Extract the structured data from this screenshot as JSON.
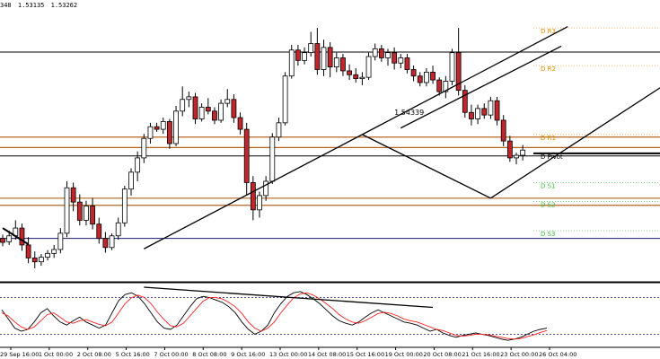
{
  "header": {
    "symbol_fragment": "348",
    "values": [
      "1.53135",
      "1.53262"
    ]
  },
  "colors": {
    "bull": "#ffffff",
    "bear": "#c0272d",
    "wick": "#000000",
    "pivot_lines": "#b5651d",
    "label_orange": "#e08a00",
    "label_green": "#3bbf3b",
    "dotted_orange": "#f4a040",
    "dotted_green": "#66cc66",
    "navy": "#1a1a7a",
    "stoch_main": "#000000",
    "stoch_signal": "#ff2020",
    "arrow": "#3333ff"
  },
  "chart_data": [
    {
      "type": "candlestick",
      "title": "",
      "price_range": [
        1.517,
        1.559
      ],
      "time_labels": [
        "29 Sep 16:00",
        "1 Oct 00:00",
        "2 Oct 08:00",
        "5 Oct 16:00",
        "7 Oct 00:00",
        "8 Oct 08:00",
        "9 Oct 16:00",
        "13 Oct 00:00",
        "14 Oct 08:00",
        "15 Oct 16:00",
        "19 Oct 00:00",
        "20 Oct 08:00",
        "21 Oct 16:00",
        "23 Oct 00:00",
        "26 Oct 04:00"
      ],
      "candles": [
        [
          1.5234,
          1.524,
          1.5222,
          1.5228
        ],
        [
          1.5229,
          1.5246,
          1.5224,
          1.5238
        ],
        [
          1.5238,
          1.5262,
          1.5232,
          1.525
        ],
        [
          1.525,
          1.5257,
          1.5215,
          1.5224
        ],
        [
          1.5224,
          1.5236,
          1.5196,
          1.5204
        ],
        [
          1.5204,
          1.5214,
          1.5188,
          1.5198
        ],
        [
          1.5198,
          1.521,
          1.5192,
          1.5205
        ],
        [
          1.5205,
          1.5216,
          1.52,
          1.5211
        ],
        [
          1.5211,
          1.5224,
          1.5204,
          1.5217
        ],
        [
          1.5217,
          1.525,
          1.5211,
          1.5242
        ],
        [
          1.5242,
          1.5322,
          1.5236,
          1.5312
        ],
        [
          1.5312,
          1.532,
          1.5276,
          1.529
        ],
        [
          1.529,
          1.5302,
          1.5254,
          1.5262
        ],
        [
          1.5262,
          1.5292,
          1.5254,
          1.5284
        ],
        [
          1.5284,
          1.5296,
          1.5248,
          1.5256
        ],
        [
          1.5256,
          1.5266,
          1.5226,
          1.5234
        ],
        [
          1.5234,
          1.5244,
          1.5212,
          1.522
        ],
        [
          1.522,
          1.5242,
          1.5216,
          1.5238
        ],
        [
          1.5238,
          1.5266,
          1.5232,
          1.5258
        ],
        [
          1.5258,
          1.5315,
          1.5252,
          1.531
        ],
        [
          1.531,
          1.5342,
          1.53,
          1.5336
        ],
        [
          1.5336,
          1.5368,
          1.5322,
          1.5358
        ],
        [
          1.5358,
          1.5395,
          1.535,
          1.5388
        ],
        [
          1.5388,
          1.5412,
          1.538,
          1.5406
        ],
        [
          1.5406,
          1.5412,
          1.5398,
          1.5402
        ],
        [
          1.5402,
          1.542,
          1.5395,
          1.5414
        ],
        [
          1.5414,
          1.5418,
          1.5372,
          1.538
        ],
        [
          1.538,
          1.5438,
          1.5376,
          1.543
        ],
        [
          1.543,
          1.5468,
          1.5422,
          1.5448
        ],
        [
          1.5448,
          1.546,
          1.5436,
          1.5452
        ],
        [
          1.5452,
          1.5458,
          1.541,
          1.5418
        ],
        [
          1.5418,
          1.5442,
          1.5414,
          1.5436
        ],
        [
          1.5436,
          1.545,
          1.5425,
          1.543
        ],
        [
          1.543,
          1.5436,
          1.541,
          1.5416
        ],
        [
          1.5416,
          1.5448,
          1.5412,
          1.5442
        ],
        [
          1.5442,
          1.5464,
          1.5436,
          1.5448
        ],
        [
          1.5448,
          1.5456,
          1.5412,
          1.542
        ],
        [
          1.542,
          1.5428,
          1.5394,
          1.5402
        ],
        [
          1.5402,
          1.5412,
          1.53,
          1.532
        ],
        [
          1.532,
          1.533,
          1.5262,
          1.5278
        ],
        [
          1.5278,
          1.5306,
          1.5266,
          1.53
        ],
        [
          1.53,
          1.533,
          1.5292,
          1.5322
        ],
        [
          1.5322,
          1.5396,
          1.5318,
          1.539
        ],
        [
          1.539,
          1.542,
          1.5384,
          1.5412
        ],
        [
          1.5412,
          1.549,
          1.5408,
          1.5484
        ],
        [
          1.5484,
          1.5532,
          1.548,
          1.5524
        ],
        [
          1.5524,
          1.5532,
          1.55,
          1.5508
        ],
        [
          1.5508,
          1.5528,
          1.5502,
          1.552
        ],
        [
          1.552,
          1.5552,
          1.5514,
          1.5534
        ],
        [
          1.5534,
          1.5558,
          1.5486,
          1.5494
        ],
        [
          1.5494,
          1.554,
          1.5484,
          1.5528
        ],
        [
          1.5528,
          1.5536,
          1.5482,
          1.5498
        ],
        [
          1.5498,
          1.552,
          1.549,
          1.5512
        ],
        [
          1.5512,
          1.5518,
          1.5484,
          1.5492
        ],
        [
          1.5492,
          1.5502,
          1.5478,
          1.5486
        ],
        [
          1.5486,
          1.5496,
          1.5474,
          1.548
        ],
        [
          1.548,
          1.549,
          1.547,
          1.5482
        ],
        [
          1.5482,
          1.552,
          1.5478,
          1.5514
        ],
        [
          1.5514,
          1.5534,
          1.5508,
          1.5526
        ],
        [
          1.5526,
          1.5532,
          1.5506,
          1.5512
        ],
        [
          1.5512,
          1.5526,
          1.55,
          1.552
        ],
        [
          1.552,
          1.5528,
          1.5494,
          1.5504
        ],
        [
          1.5504,
          1.5518,
          1.5496,
          1.5512
        ],
        [
          1.5512,
          1.5518,
          1.5488,
          1.5494
        ],
        [
          1.5494,
          1.55,
          1.5476,
          1.5484
        ],
        [
          1.5484,
          1.549,
          1.5468,
          1.5474
        ],
        [
          1.5474,
          1.5496,
          1.5468,
          1.549
        ],
        [
          1.549,
          1.55,
          1.5472,
          1.5478
        ],
        [
          1.5478,
          1.5482,
          1.5454,
          1.546
        ],
        [
          1.546,
          1.5484,
          1.545,
          1.5476
        ],
        [
          1.5476,
          1.5526,
          1.547,
          1.552
        ],
        [
          1.552,
          1.5558,
          1.5454,
          1.5462
        ],
        [
          1.5462,
          1.547,
          1.542,
          1.5428
        ],
        [
          1.5428,
          1.544,
          1.5408,
          1.5418
        ],
        [
          1.5418,
          1.544,
          1.541,
          1.5434
        ],
        [
          1.5434,
          1.5442,
          1.5418,
          1.5424
        ],
        [
          1.5424,
          1.5452,
          1.5418,
          1.5446
        ],
        [
          1.5446,
          1.5452,
          1.5408,
          1.5416
        ],
        [
          1.5416,
          1.5424,
          1.5376,
          1.5384
        ],
        [
          1.5384,
          1.5392,
          1.5352,
          1.5358
        ],
        [
          1.5358,
          1.5366,
          1.5348,
          1.5362
        ],
        [
          1.5362,
          1.5378,
          1.5354,
          1.537
        ]
      ],
      "horizontal_lines": [
        1.5521,
        1.539,
        1.5374,
        1.5361,
        1.5296,
        1.5285,
        1.5234
      ],
      "pivot_levels": [
        {
          "label": "D R3",
          "value": 1.5558,
          "color": "orange"
        },
        {
          "label": "D R2",
          "value": 1.55,
          "color": "orange"
        },
        {
          "label": "D R1",
          "value": 1.5394,
          "color": "orange"
        },
        {
          "label": "D Pivot",
          "value": 1.5365,
          "color": "black"
        },
        {
          "label": "D S1",
          "value": 1.532,
          "color": "green"
        },
        {
          "label": "D S2",
          "value": 1.5291,
          "color": "green"
        },
        {
          "label": "D S3",
          "value": 1.5246,
          "color": "green"
        }
      ],
      "price_annotation": {
        "text": "1.54339",
        "value": 1.5434
      },
      "channel_lines": [
        [
          [
            1.5218,
            22
          ],
          [
            1.5394,
            56
          ]
        ],
        [
          [
            1.5394,
            56
          ],
          [
            1.556,
            88
          ]
        ],
        [
          [
            1.5394,
            56
          ],
          [
            1.5296,
            76
          ]
        ],
        [
          [
            1.5296,
            76
          ],
          [
            1.556,
            117
          ]
        ],
        [
          [
            1.525,
            0
          ],
          [
            1.5225,
            4
          ]
        ],
        [
          [
            1.5404,
            62
          ],
          [
            1.553,
            87
          ]
        ]
      ],
      "arrow_marker": {
        "value": 1.5276,
        "index": 118
      }
    },
    {
      "type": "line",
      "title": "",
      "ylim": [
        0,
        100
      ],
      "levels": [
        80,
        20
      ],
      "series": [
        {
          "values": [
            60,
            45,
            30,
            25,
            28,
            40,
            55,
            62,
            50,
            40,
            35,
            42,
            48,
            40,
            35,
            30,
            35,
            55,
            75,
            85,
            88,
            82,
            70,
            55,
            40,
            30,
            28,
            35,
            50,
            65,
            78,
            82,
            80,
            76,
            72,
            65,
            55,
            40,
            28,
            20,
            25,
            35,
            55,
            70,
            82,
            88,
            90,
            85,
            78,
            70,
            60,
            50,
            42,
            38,
            35,
            40,
            48,
            55,
            60,
            55,
            50,
            45,
            40,
            38,
            35,
            30,
            25,
            28,
            22,
            18,
            15,
            18,
            20,
            22,
            20,
            18,
            15,
            12,
            10,
            12,
            15,
            20,
            25,
            28,
            30
          ]
        },
        {
          "values": [
            55,
            50,
            40,
            32,
            28,
            32,
            42,
            52,
            55,
            48,
            40,
            38,
            42,
            44,
            40,
            36,
            34,
            40,
            55,
            70,
            80,
            84,
            80,
            70,
            56,
            44,
            34,
            32,
            38,
            50,
            62,
            74,
            80,
            80,
            78,
            72,
            65,
            54,
            40,
            30,
            25,
            30,
            40,
            55,
            68,
            80,
            86,
            88,
            84,
            78,
            70,
            62,
            52,
            45,
            40,
            38,
            42,
            48,
            54,
            56,
            54,
            50,
            45,
            42,
            40,
            36,
            32,
            28,
            26,
            22,
            18,
            17,
            18,
            20,
            20,
            19,
            17,
            15,
            13,
            12,
            13,
            16,
            19,
            23,
            26
          ]
        }
      ],
      "trend_line": [
        [
          85,
          34
        ],
        [
          99,
          482
        ]
      ]
    }
  ]
}
